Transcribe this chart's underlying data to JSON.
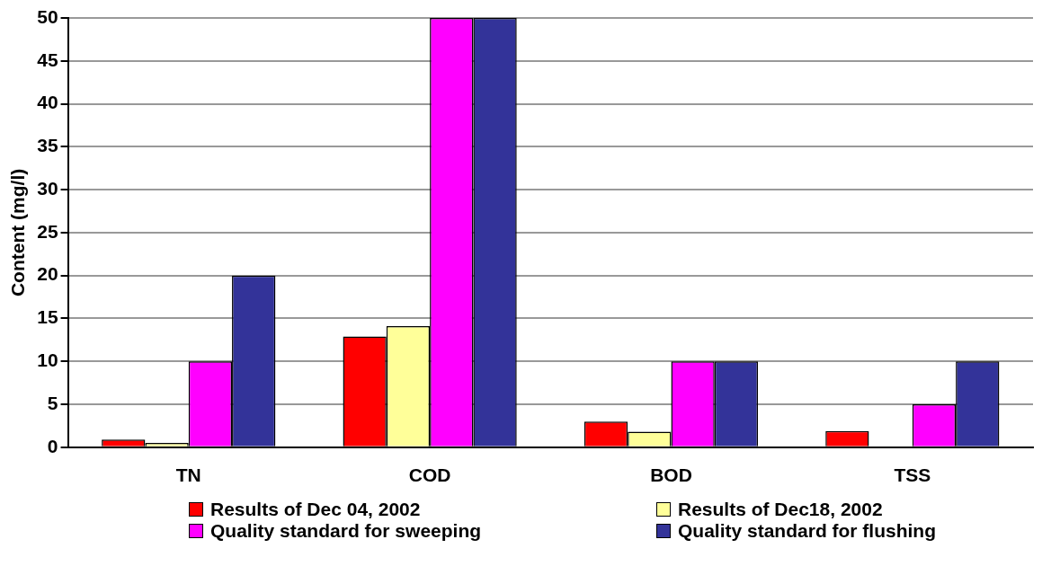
{
  "chart_data": {
    "type": "bar",
    "ylabel": "Content (mg/l)",
    "categories": [
      "TN",
      "COD",
      "BOD",
      "TSS"
    ],
    "series": [
      {
        "name": "Results of Dec 04, 2002",
        "color": "#ff0000",
        "values": [
          0.9,
          12.9,
          3.0,
          1.9
        ]
      },
      {
        "name": "Results of Dec18, 2002",
        "color": "#ffff99",
        "values": [
          0.5,
          14.1,
          1.8,
          null
        ]
      },
      {
        "name": "Quality standard for sweeping",
        "color": "#ff00ff",
        "values": [
          10,
          50,
          10,
          5
        ]
      },
      {
        "name": "Quality standard for flushing",
        "color": "#333399",
        "values": [
          20,
          50,
          10,
          10
        ]
      }
    ],
    "ylim": [
      0,
      50
    ],
    "yticks": [
      0,
      5,
      10,
      15,
      20,
      25,
      30,
      35,
      40,
      45,
      50
    ],
    "grid": "y",
    "legend": "bottom"
  }
}
